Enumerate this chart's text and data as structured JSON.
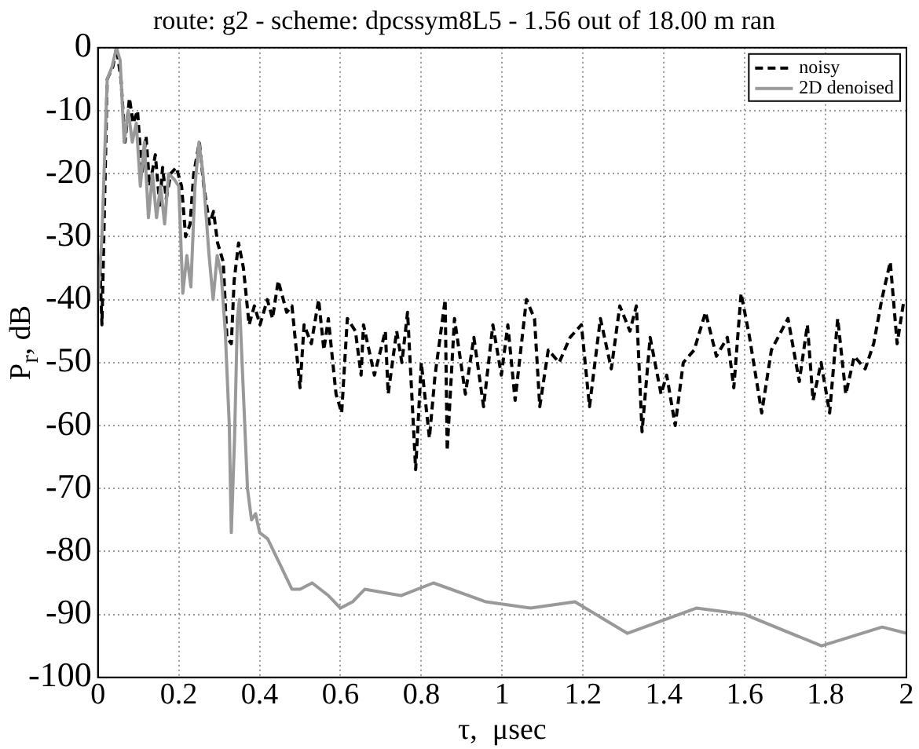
{
  "chart_data": {
    "type": "line",
    "title": "route: g2 - scheme: dpcssym8L5 - 1.56 out of 18.00 m ran",
    "xlabel": "τ,  μsec",
    "ylabel": "P$_{r}$, dB",
    "xlim": [
      0,
      2
    ],
    "xticks": [
      0,
      0.2,
      0.4,
      0.6,
      0.8,
      1,
      1.2,
      1.4,
      1.6,
      1.8,
      2
    ],
    "ylim": [
      -100,
      0
    ],
    "yticks": [
      -100,
      -90,
      -80,
      -70,
      -60,
      -50,
      -40,
      -30,
      -20,
      -10,
      0
    ],
    "grid": true,
    "legend": "top right",
    "marker": "none",
    "series": [
      {
        "name": "noisy",
        "color": "#000000",
        "line_style": "dashed",
        "x": [
          0.005,
          0.01,
          0.023,
          0.037,
          0.046,
          0.057,
          0.067,
          0.078,
          0.087,
          0.098,
          0.109,
          0.119,
          0.128,
          0.142,
          0.153,
          0.16,
          0.169,
          0.18,
          0.194,
          0.207,
          0.217,
          0.228,
          0.237,
          0.251,
          0.262,
          0.276,
          0.286,
          0.296,
          0.31,
          0.319,
          0.33,
          0.337,
          0.348,
          0.36,
          0.374,
          0.387,
          0.401,
          0.419,
          0.432,
          0.446,
          0.467,
          0.48,
          0.5,
          0.51,
          0.528,
          0.546,
          0.559,
          0.57,
          0.589,
          0.603,
          0.617,
          0.637,
          0.651,
          0.657,
          0.684,
          0.711,
          0.718,
          0.739,
          0.752,
          0.766,
          0.786,
          0.8,
          0.82,
          0.834,
          0.859,
          0.864,
          0.882,
          0.909,
          0.93,
          0.954,
          0.977,
          0.998,
          1.014,
          1.032,
          1.06,
          1.08,
          1.093,
          1.114,
          1.141,
          1.168,
          1.196,
          1.216,
          1.243,
          1.27,
          1.291,
          1.316,
          1.332,
          1.346,
          1.366,
          1.393,
          1.407,
          1.428,
          1.448,
          1.475,
          1.503,
          1.53,
          1.557,
          1.573,
          1.591,
          1.612,
          1.642,
          1.666,
          1.707,
          1.735,
          1.755,
          1.769,
          1.789,
          1.81,
          1.83,
          1.85,
          1.871,
          1.898,
          1.919,
          1.939,
          1.96,
          1.977,
          1.994
        ],
        "values": [
          -35,
          -44,
          -5,
          -3,
          0,
          -5,
          -15,
          -8,
          -12,
          -10,
          -20,
          -14,
          -22,
          -17,
          -25,
          -19,
          -24,
          -20,
          -19,
          -22,
          -30,
          -28,
          -20,
          -15,
          -22,
          -28,
          -26,
          -31,
          -34,
          -46,
          -47,
          -37,
          -31,
          -35,
          -44,
          -41,
          -44,
          -40,
          -43,
          -37,
          -42,
          -41,
          -54,
          -44,
          -47,
          -40,
          -48,
          -43,
          -55,
          -58,
          -43,
          -45,
          -52,
          -44,
          -52,
          -45,
          -55,
          -45,
          -50,
          -42,
          -67,
          -50,
          -62,
          -52,
          -40,
          -64,
          -43,
          -55,
          -46,
          -57,
          -44,
          -52,
          -44,
          -56,
          -40,
          -43,
          -57,
          -48,
          -50,
          -46,
          -44,
          -57,
          -43,
          -51,
          -41,
          -45,
          -41,
          -61,
          -46,
          -55,
          -52,
          -60,
          -50,
          -48,
          -42,
          -49,
          -46,
          -54,
          -39,
          -46,
          -58,
          -48,
          -43,
          -53,
          -44,
          -56,
          -50,
          -58,
          -43,
          -55,
          -49,
          -51,
          -47,
          -40,
          -34,
          -47,
          -40
        ]
      },
      {
        "name": "2D denoised",
        "color": "#999999",
        "line_style": "solid",
        "x": [
          0,
          0.01,
          0.023,
          0.035,
          0.046,
          0.055,
          0.065,
          0.075,
          0.085,
          0.095,
          0.105,
          0.115,
          0.125,
          0.135,
          0.145,
          0.155,
          0.165,
          0.175,
          0.19,
          0.2,
          0.21,
          0.22,
          0.23,
          0.24,
          0.25,
          0.26,
          0.275,
          0.285,
          0.295,
          0.305,
          0.315,
          0.325,
          0.33,
          0.338,
          0.345,
          0.35,
          0.36,
          0.37,
          0.38,
          0.39,
          0.4,
          0.42,
          0.45,
          0.48,
          0.5,
          0.53,
          0.57,
          0.6,
          0.63,
          0.66,
          0.75,
          0.83,
          0.96,
          1.07,
          1.18,
          1.31,
          1.48,
          1.6,
          1.79,
          1.94,
          2
        ],
        "values": [
          -40,
          -30,
          -5,
          -3,
          0,
          -2,
          -15,
          -10,
          -15,
          -12,
          -22,
          -15,
          -27,
          -20,
          -27,
          -22,
          -28,
          -20,
          -21,
          -22,
          -39,
          -33,
          -38,
          -22,
          -15,
          -20,
          -33,
          -40,
          -33,
          -36,
          -45,
          -60,
          -77,
          -62,
          -43,
          -40,
          -55,
          -70,
          -75,
          -74,
          -77,
          -78,
          -82,
          -86,
          -86,
          -85,
          -87,
          -89,
          -88,
          -86,
          -87,
          -85,
          -88,
          -89,
          -88,
          -93,
          -89,
          -90,
          -95,
          -92,
          -93
        ]
      }
    ]
  }
}
